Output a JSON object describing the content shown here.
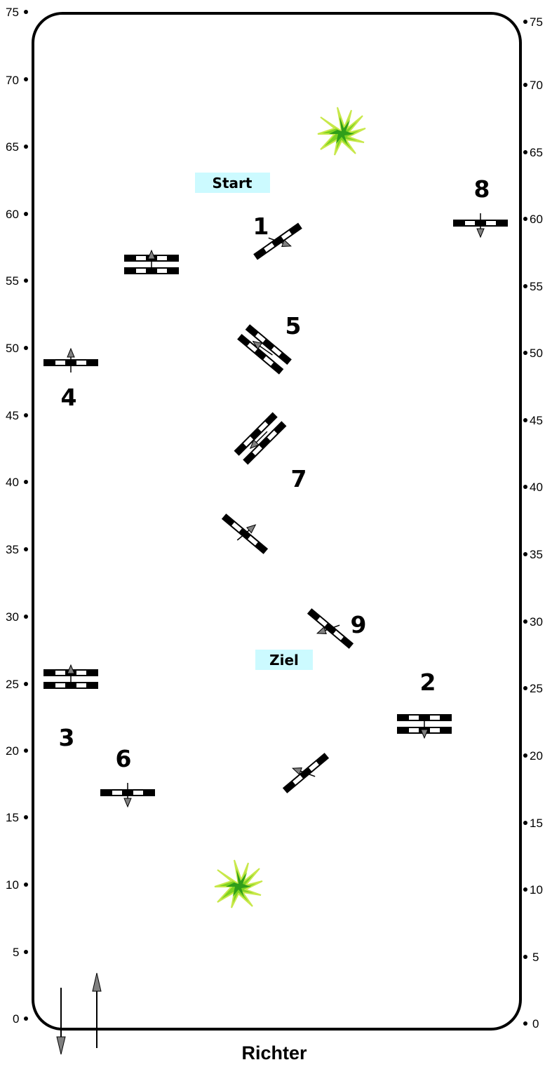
{
  "scale": {
    "ticks": [
      "0",
      "5",
      "10",
      "15",
      "20",
      "25",
      "30",
      "35",
      "40",
      "45",
      "50",
      "55",
      "60",
      "65",
      "70",
      "75"
    ]
  },
  "labels": {
    "start": "Start",
    "finish": "Ziel",
    "judge": "Richter"
  },
  "jump_numbers": [
    "1",
    "2",
    "3",
    "4",
    "5",
    "6",
    "7",
    "8",
    "9"
  ],
  "colors": {
    "arena_border": "#000000",
    "start_tag": "#ccfaff",
    "finish_tag": "#ccfaff",
    "plant": "#7ed321",
    "arrow_fill": "#808080"
  }
}
